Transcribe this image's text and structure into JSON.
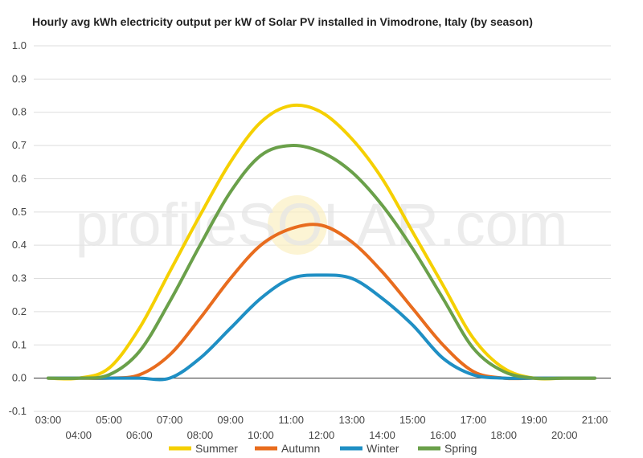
{
  "chart_data": {
    "type": "line",
    "title": "Hourly avg kWh electricity output per kW of Solar PV installed in Vimodrone, Italy (by season)",
    "xlabel": "",
    "ylabel": "",
    "ylim": [
      -0.1,
      1.0
    ],
    "yticks": [
      "-0.1",
      "0.0",
      "0.1",
      "0.2",
      "0.3",
      "0.4",
      "0.5",
      "0.6",
      "0.7",
      "0.8",
      "0.9",
      "1.0"
    ],
    "categories": [
      "03:00",
      "04:00",
      "05:00",
      "06:00",
      "07:00",
      "08:00",
      "09:00",
      "10:00",
      "11:00",
      "12:00",
      "13:00",
      "14:00",
      "15:00",
      "16:00",
      "17:00",
      "18:00",
      "19:00",
      "20:00",
      "21:00"
    ],
    "grid": true,
    "legend_position": "bottom",
    "series": [
      {
        "name": "Summer",
        "color": "#f5d000",
        "values": [
          0.0,
          0.0,
          0.03,
          0.15,
          0.32,
          0.49,
          0.65,
          0.77,
          0.82,
          0.8,
          0.72,
          0.6,
          0.44,
          0.28,
          0.12,
          0.03,
          0.0,
          0.0,
          0.0
        ]
      },
      {
        "name": "Autumn",
        "color": "#e86c1e",
        "values": [
          0.0,
          0.0,
          0.0,
          0.01,
          0.07,
          0.18,
          0.3,
          0.4,
          0.45,
          0.46,
          0.41,
          0.32,
          0.21,
          0.1,
          0.02,
          0.0,
          0.0,
          0.0,
          0.0
        ]
      },
      {
        "name": "Winter",
        "color": "#1f8fc4",
        "values": [
          0.0,
          0.0,
          0.0,
          0.0,
          0.0,
          0.06,
          0.15,
          0.24,
          0.3,
          0.31,
          0.3,
          0.24,
          0.16,
          0.06,
          0.01,
          0.0,
          0.0,
          0.0,
          0.0
        ]
      },
      {
        "name": "Spring",
        "color": "#6aa04a",
        "values": [
          0.0,
          0.0,
          0.01,
          0.08,
          0.23,
          0.4,
          0.56,
          0.67,
          0.7,
          0.68,
          0.62,
          0.52,
          0.39,
          0.24,
          0.09,
          0.02,
          0.0,
          0.0,
          0.0
        ]
      }
    ]
  },
  "watermark": {
    "text": "profileSOLAR.com"
  }
}
